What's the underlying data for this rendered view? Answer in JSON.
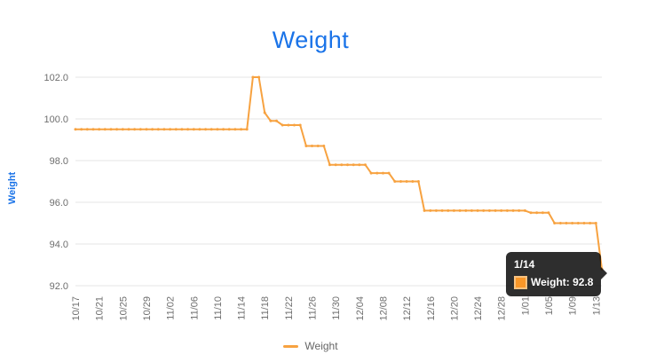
{
  "title": "Weight",
  "colors": {
    "title": "#1a73e8",
    "axis_title": "#1a73e8",
    "line": "#f7a240",
    "gridline": "#e4e4e4",
    "tick_label": "#6e6e6e",
    "legend_text": "#666666",
    "tooltip_bg": "#2b2b2b",
    "tooltip_swatch_fill": "#fa9728",
    "tooltip_swatch_border": "#f9c27f"
  },
  "legend": {
    "label": "Weight"
  },
  "tooltip": {
    "date": "1/14",
    "label": "Weight",
    "value": 92.8,
    "text": "Weight: 92.8"
  },
  "chart_data": {
    "type": "line",
    "title": "Weight",
    "xlabel": "",
    "ylabel": "Weight",
    "ylim": [
      92,
      102
    ],
    "grid": "horizontal",
    "legend_position": "bottom",
    "y_ticks": [
      "92.0",
      "94.0",
      "96.0",
      "98.0",
      "100.0",
      "102.0"
    ],
    "x_tick_labels": [
      "10/17",
      "10/21",
      "10/25",
      "10/29",
      "11/02",
      "11/06",
      "11/10",
      "11/14",
      "11/18",
      "11/22",
      "11/26",
      "11/30",
      "12/04",
      "12/08",
      "12/12",
      "12/16",
      "12/20",
      "12/24",
      "12/28",
      "1/01",
      "1/05",
      "1/09",
      "1/13"
    ],
    "x_tick_every": 4,
    "series": [
      {
        "name": "Weight",
        "color": "#f7a240",
        "x": [
          "10/17",
          "10/18",
          "10/19",
          "10/20",
          "10/21",
          "10/22",
          "10/23",
          "10/24",
          "10/25",
          "10/26",
          "10/27",
          "10/28",
          "10/29",
          "10/30",
          "10/31",
          "11/01",
          "11/02",
          "11/03",
          "11/04",
          "11/05",
          "11/06",
          "11/07",
          "11/08",
          "11/09",
          "11/10",
          "11/11",
          "11/12",
          "11/13",
          "11/14",
          "11/15",
          "11/16",
          "11/17",
          "11/18",
          "11/19",
          "11/20",
          "11/21",
          "11/22",
          "11/23",
          "11/24",
          "11/25",
          "11/26",
          "11/27",
          "11/28",
          "11/29",
          "11/30",
          "12/01",
          "12/02",
          "12/03",
          "12/04",
          "12/05",
          "12/06",
          "12/07",
          "12/08",
          "12/09",
          "12/10",
          "12/11",
          "12/12",
          "12/13",
          "12/14",
          "12/15",
          "12/16",
          "12/17",
          "12/18",
          "12/19",
          "12/20",
          "12/21",
          "12/22",
          "12/23",
          "12/24",
          "12/25",
          "12/26",
          "12/27",
          "12/28",
          "12/29",
          "12/30",
          "12/31",
          "1/01",
          "1/02",
          "1/03",
          "1/04",
          "1/05",
          "1/06",
          "1/07",
          "1/08",
          "1/09",
          "1/10",
          "1/11",
          "1/12",
          "1/13",
          "1/14"
        ],
        "values": [
          99.5,
          99.5,
          99.5,
          99.5,
          99.5,
          99.5,
          99.5,
          99.5,
          99.5,
          99.5,
          99.5,
          99.5,
          99.5,
          99.5,
          99.5,
          99.5,
          99.5,
          99.5,
          99.5,
          99.5,
          99.5,
          99.5,
          99.5,
          99.5,
          99.5,
          99.5,
          99.5,
          99.5,
          99.5,
          99.5,
          102.0,
          102.0,
          100.3,
          99.9,
          99.9,
          99.7,
          99.7,
          99.7,
          99.7,
          98.7,
          98.7,
          98.7,
          98.7,
          97.8,
          97.8,
          97.8,
          97.8,
          97.8,
          97.8,
          97.8,
          97.4,
          97.4,
          97.4,
          97.4,
          97.0,
          97.0,
          97.0,
          97.0,
          97.0,
          95.6,
          95.6,
          95.6,
          95.6,
          95.6,
          95.6,
          95.6,
          95.6,
          95.6,
          95.6,
          95.6,
          95.6,
          95.6,
          95.6,
          95.6,
          95.6,
          95.6,
          95.6,
          95.5,
          95.5,
          95.5,
          95.5,
          95.0,
          95.0,
          95.0,
          95.0,
          95.0,
          95.0,
          95.0,
          95.0,
          92.8
        ]
      }
    ]
  }
}
